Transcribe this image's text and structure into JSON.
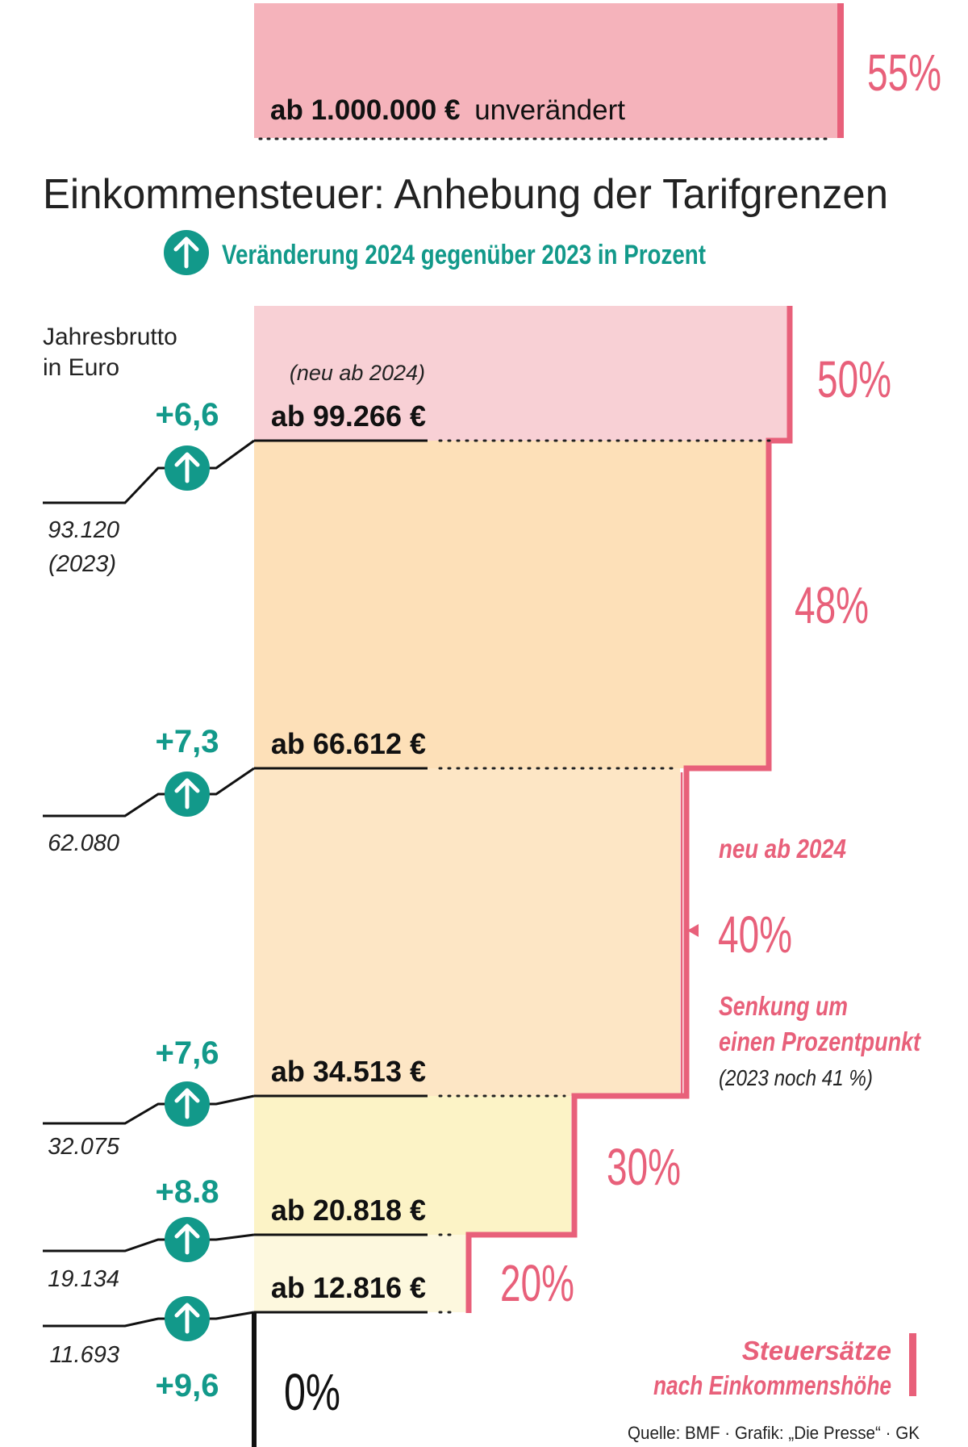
{
  "chart_data": {
    "type": "bar",
    "title": "Einkommensteuer: Anhebung der Tarifgrenzen",
    "legend": {
      "label": "Veränderung 2024 gegenüber 2023 in Prozent",
      "icon": "up-arrow-circle-icon"
    },
    "axis_label": {
      "line1": "Jahresbrutto",
      "line2": "in Euro"
    },
    "top_bracket": {
      "label_bold": "ab 1.000.000 €",
      "label_rest": "unverändert",
      "rate": "55%"
    },
    "brackets": [
      {
        "threshold_2024": 12816,
        "label": "ab 12.816 €",
        "threshold_2023": 11693,
        "label_2023": "11.693",
        "change": "+9,6",
        "rate": "20%",
        "rate_value": 20
      },
      {
        "threshold_2024": 20818,
        "label": "ab 20.818 €",
        "threshold_2023": 19134,
        "label_2023": "19.134",
        "change": "+8.8",
        "rate": "30%",
        "rate_value": 30
      },
      {
        "threshold_2024": 34513,
        "label": "ab 34.513 €",
        "threshold_2023": 32075,
        "label_2023": "32.075",
        "change": "+7,6",
        "rate": "40%",
        "rate_value": 40
      },
      {
        "threshold_2024": 66612,
        "label": "ab 66.612 €",
        "threshold_2023": 62080,
        "label_2023": "62.080",
        "change": "+7,3",
        "rate": "48%",
        "rate_value": 48
      },
      {
        "threshold_2024": 99266,
        "label": "ab 99.266 €",
        "threshold_2023": 93120,
        "label_2023": "93.120",
        "label_2023_note": "(2023)",
        "change": "+6,6",
        "rate": "50%",
        "rate_value": 50,
        "note": "(neu ab 2024)"
      }
    ],
    "zero_rate": "0%",
    "annotations": {
      "new_2024": "neu ab 2024",
      "reduction_line1": "Senkung um",
      "reduction_line2": "einen Prozentpunkt",
      "reduction_note": "(2023 noch 41 %)"
    },
    "legend_box": {
      "line1": "Steuersätze",
      "line2": "nach Einkommenshöhe"
    },
    "source": "Quelle: BMF · Grafik: „Die Presse“ · GK",
    "colors": {
      "accent_red": "#e8607a",
      "teal": "#12998a",
      "band_55": "#f5b3bb",
      "band_50": "#f8d0d5",
      "band_48": "#fde0b8",
      "band_40": "#fde6c5",
      "band_30": "#fcf3c6",
      "band_20": "#fdf8de"
    }
  }
}
